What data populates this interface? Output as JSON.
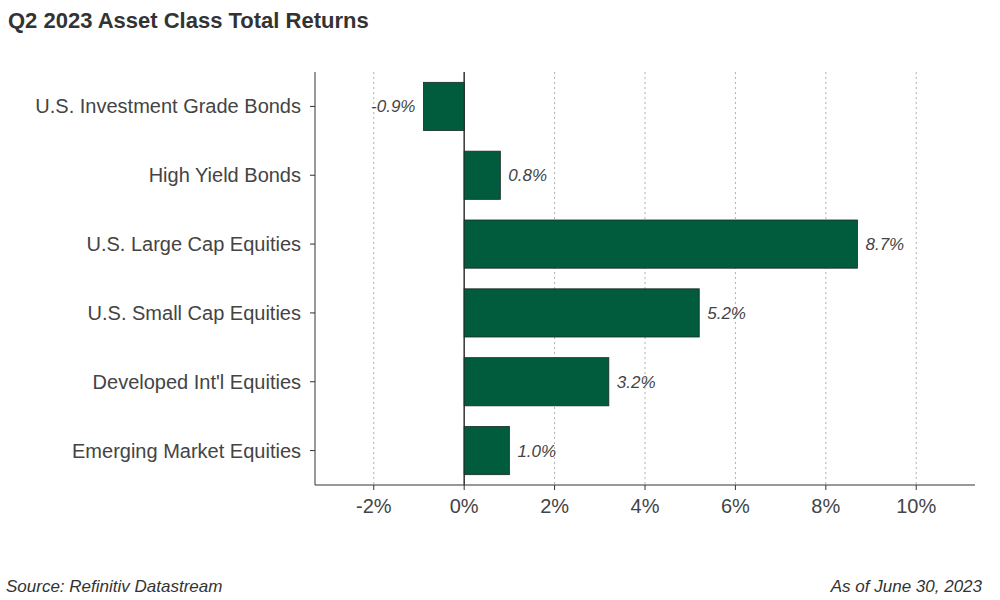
{
  "chart_data": {
    "type": "bar",
    "orientation": "horizontal",
    "title": "Q2 2023 Asset Class Total Returns",
    "categories": [
      "U.S. Investment Grade Bonds",
      "High Yield Bonds",
      "U.S. Large Cap Equities",
      "U.S. Small Cap Equities",
      "Developed Int'l Equities",
      "Emerging Market Equities"
    ],
    "values": [
      -0.9,
      0.8,
      8.7,
      5.2,
      3.2,
      1.0
    ],
    "value_labels": [
      "-0.9%",
      "0.8%",
      "8.7%",
      "5.2%",
      "3.2%",
      "1.0%"
    ],
    "color": "#005c3c",
    "xlim": [
      -3.3,
      11.3
    ],
    "xticks": [
      {
        "value": -2,
        "label": "-2%"
      },
      {
        "value": 0,
        "label": "0%"
      },
      {
        "value": 2,
        "label": "2%"
      },
      {
        "value": 4,
        "label": "4%"
      },
      {
        "value": 6,
        "label": "6%"
      },
      {
        "value": 8,
        "label": "8%"
      },
      {
        "value": 10,
        "label": "10%"
      }
    ],
    "grid": true,
    "data_labels": true,
    "annotations": [
      "Source: Refinitiv Datastream",
      "As of June 30, 2023"
    ]
  }
}
